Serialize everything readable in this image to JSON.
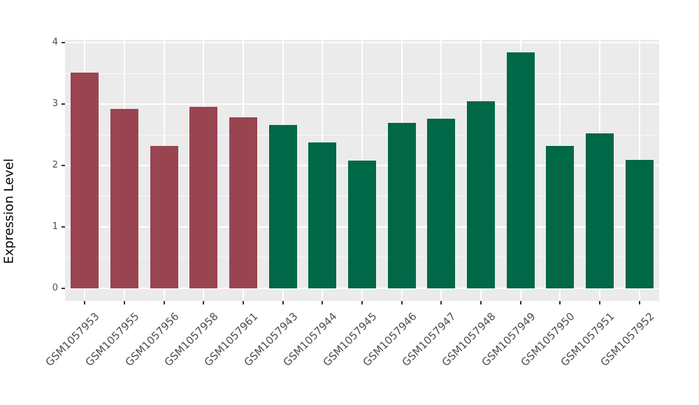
{
  "chart_data": {
    "type": "bar",
    "title": "",
    "xlabel": "",
    "ylabel": "Expression Level",
    "categories": [
      "GSM1057953",
      "GSM1057955",
      "GSM1057956",
      "GSM1057958",
      "GSM1057961",
      "GSM1057943",
      "GSM1057944",
      "GSM1057945",
      "GSM1057946",
      "GSM1057947",
      "GSM1057948",
      "GSM1057949",
      "GSM1057950",
      "GSM1057951",
      "GSM1057952"
    ],
    "values": [
      3.51,
      2.92,
      2.32,
      2.96,
      2.78,
      2.66,
      2.38,
      2.08,
      2.7,
      2.76,
      3.05,
      3.85,
      2.32,
      2.52,
      2.09
    ],
    "bar_colors": [
      "#9A4451",
      "#9A4451",
      "#9A4451",
      "#9A4451",
      "#9A4451",
      "#006747",
      "#006747",
      "#006747",
      "#006747",
      "#006747",
      "#006747",
      "#006747",
      "#006747",
      "#006747",
      "#006747"
    ],
    "groups": [
      {
        "name": "maroon-group",
        "color": "#9A4451",
        "count": 5
      },
      {
        "name": "green-group",
        "color": "#006747",
        "count": 10
      }
    ],
    "ylim": [
      0,
      4
    ],
    "y_display_range": [
      -0.21,
      4.05
    ],
    "yticks": [
      0,
      1,
      2,
      3,
      4
    ],
    "yticks_minor": [
      0.5,
      1.5,
      2.5,
      3.5
    ],
    "grid": true,
    "legend": "none",
    "panel_bg": "#EBEBEB",
    "grid_color": "#FFFFFF",
    "tick_label_color": "#4D4D4D",
    "axis_title_color": "#000000",
    "bar_width_fraction": 0.7
  }
}
